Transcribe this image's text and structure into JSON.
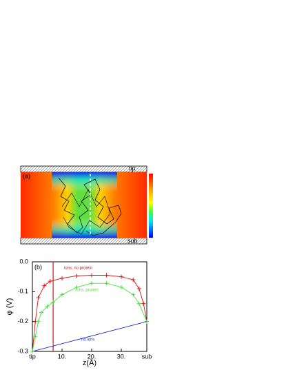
{
  "panel_a": {
    "label": "(a)",
    "top_label": "tip",
    "bottom_label": "sub"
  },
  "chart_data": {
    "type": "line",
    "label": "(b)",
    "x_label": "z(Å)",
    "y_label": "φ (V)",
    "xlim": [
      0,
      38.6
    ],
    "ylim": [
      -0.3,
      0
    ],
    "xticks": [
      {
        "value": 0,
        "label": "tip"
      },
      {
        "value": 10,
        "label": "10."
      },
      {
        "value": 20,
        "label": "20."
      },
      {
        "value": 30,
        "label": "30."
      },
      {
        "value": 38.6,
        "label": "sub"
      }
    ],
    "yticks": [
      {
        "value": 0,
        "label": "0.0"
      },
      -0.1,
      -0.2,
      -0.3
    ],
    "vline": {
      "x": 7,
      "color": "#e01010"
    },
    "series": [
      {
        "name": "ions, no protein",
        "color": "#e01010",
        "markers": true,
        "x": [
          0,
          1,
          2,
          4,
          6,
          10,
          15,
          20,
          25,
          30,
          34,
          36,
          37.5,
          38.6
        ],
        "values": [
          -0.3,
          -0.2,
          -0.12,
          -0.08,
          -0.065,
          -0.055,
          -0.047,
          -0.045,
          -0.045,
          -0.05,
          -0.06,
          -0.09,
          -0.14,
          -0.2
        ]
      },
      {
        "name": "ions, protein",
        "color": "#50e040",
        "markers": true,
        "x": [
          0,
          1,
          2,
          3,
          5,
          7,
          10,
          15,
          20,
          25,
          30,
          34,
          36,
          38.6
        ],
        "values": [
          -0.3,
          -0.25,
          -0.2,
          -0.17,
          -0.15,
          -0.135,
          -0.11,
          -0.085,
          -0.072,
          -0.072,
          -0.085,
          -0.11,
          -0.14,
          -0.2
        ]
      },
      {
        "name": "no ions",
        "color": "#2030d0",
        "markers": false,
        "x": [
          0,
          38.6
        ],
        "values": [
          -0.3,
          -0.2
        ]
      }
    ]
  }
}
